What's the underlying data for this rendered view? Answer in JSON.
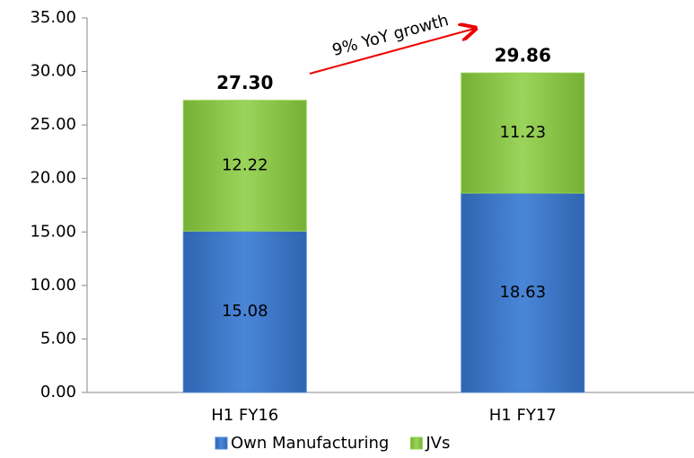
{
  "chart_data": {
    "type": "stacked_bar",
    "categories": [
      "H1 FY16",
      "H1 FY17"
    ],
    "series": [
      {
        "name": "Own Manufacturing",
        "color": "#4a86d8",
        "values": [
          15.08,
          18.63
        ]
      },
      {
        "name": "JVs",
        "color": "#92d050",
        "values": [
          12.22,
          11.23
        ]
      }
    ],
    "totals": [
      27.3,
      29.86
    ],
    "total_labels": [
      "27.30",
      "29.86"
    ],
    "annotation": "9% YoY growth",
    "ylim": [
      0,
      35
    ],
    "yticks": [
      {
        "value": 0,
        "label": "0.00"
      },
      {
        "value": 5,
        "label": "5.00"
      },
      {
        "value": 10,
        "label": "10.00"
      },
      {
        "value": 15,
        "label": "15.00"
      },
      {
        "value": 20,
        "label": "20.00"
      },
      {
        "value": 25,
        "label": "25.00"
      },
      {
        "value": 30,
        "label": "30.00"
      },
      {
        "value": 35,
        "label": "35.00"
      }
    ],
    "grid": false,
    "legend": "bottom"
  }
}
